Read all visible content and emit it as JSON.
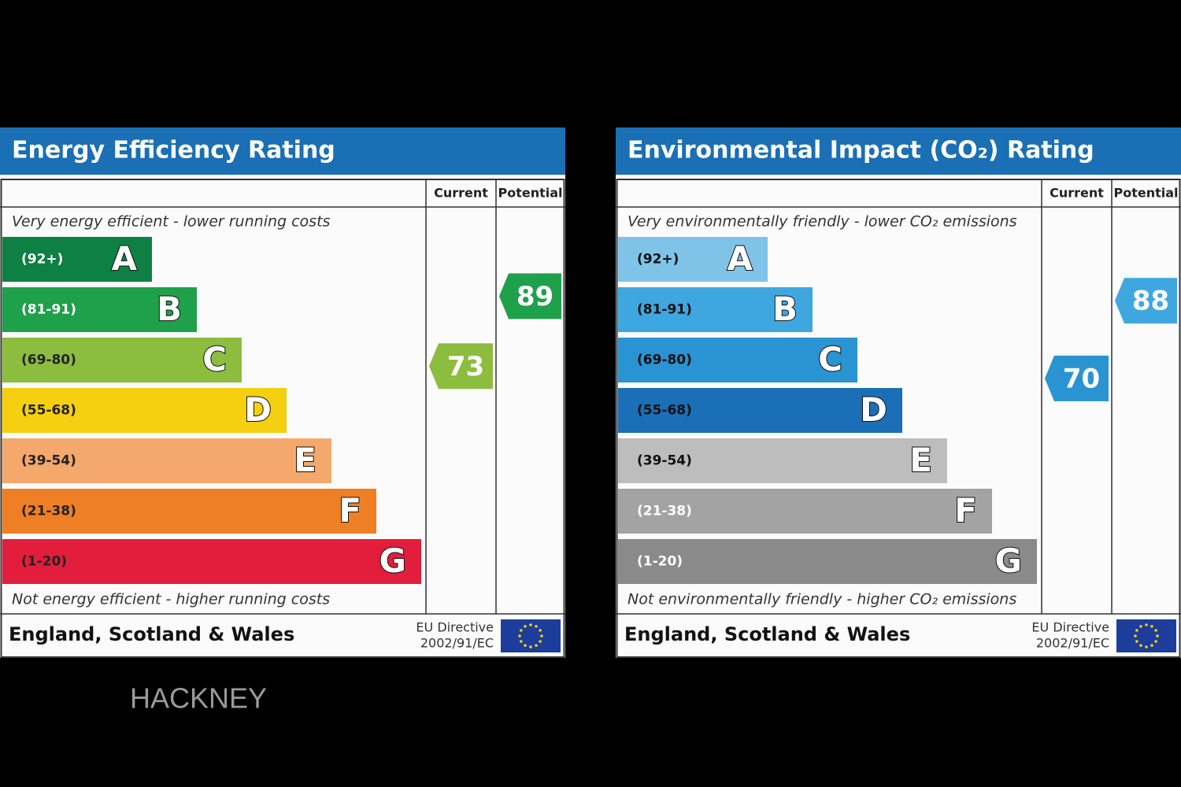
{
  "panels": [
    {
      "title": "Energy Efficiency Rating",
      "columns": [
        "Current",
        "Potential"
      ],
      "top_note": "Very energy efficient - lower running costs",
      "bottom_note": "Not energy efficient - higher running costs",
      "bands": [
        {
          "range": "(92+)",
          "letter": "A",
          "color": "#0e8044",
          "label_color": "#ffffff"
        },
        {
          "range": "(81-91)",
          "letter": "B",
          "color": "#1fa04a",
          "label_color": "#ffffff"
        },
        {
          "range": "(69-80)",
          "letter": "C",
          "color": "#8cbd3f",
          "label_color": "#222222"
        },
        {
          "range": "(55-68)",
          "letter": "D",
          "color": "#f5d010",
          "label_color": "#222222"
        },
        {
          "range": "(39-54)",
          "letter": "E",
          "color": "#f4a86b",
          "label_color": "#222222"
        },
        {
          "range": "(21-38)",
          "letter": "F",
          "color": "#ef7f25",
          "label_color": "#222222"
        },
        {
          "range": "(1-20)",
          "letter": "G",
          "color": "#e31d3c",
          "label_color": "#222222"
        }
      ],
      "current": 73,
      "potential": 89,
      "footer": "England, Scotland & Wales",
      "directive": [
        "EU Directive",
        "2002/91/EC"
      ]
    },
    {
      "title": "Environmental Impact (CO₂) Rating",
      "columns": [
        "Current",
        "Potential"
      ],
      "top_note": "Very environmentally friendly - lower CO₂ emissions",
      "bottom_note": "Not environmentally friendly - higher CO₂ emissions",
      "bands": [
        {
          "range": "(92+)",
          "letter": "A",
          "color": "#7fc4e8",
          "label_color": "#111111"
        },
        {
          "range": "(81-91)",
          "letter": "B",
          "color": "#3fa7e0",
          "label_color": "#111111"
        },
        {
          "range": "(69-80)",
          "letter": "C",
          "color": "#2a93d2",
          "label_color": "#111111"
        },
        {
          "range": "(55-68)",
          "letter": "D",
          "color": "#1b6fb7",
          "label_color": "#111111"
        },
        {
          "range": "(39-54)",
          "letter": "E",
          "color": "#bdbdbd",
          "label_color": "#111111"
        },
        {
          "range": "(21-38)",
          "letter": "F",
          "color": "#a3a3a3",
          "label_color": "#ffffff"
        },
        {
          "range": "(1-20)",
          "letter": "G",
          "color": "#8a8a8a",
          "label_color": "#ffffff"
        }
      ],
      "current": 70,
      "potential": 88,
      "footer": "England, Scotland & Wales",
      "directive": [
        "EU Directive",
        "2002/91/EC"
      ]
    }
  ],
  "watermark": "HACKNEY"
}
